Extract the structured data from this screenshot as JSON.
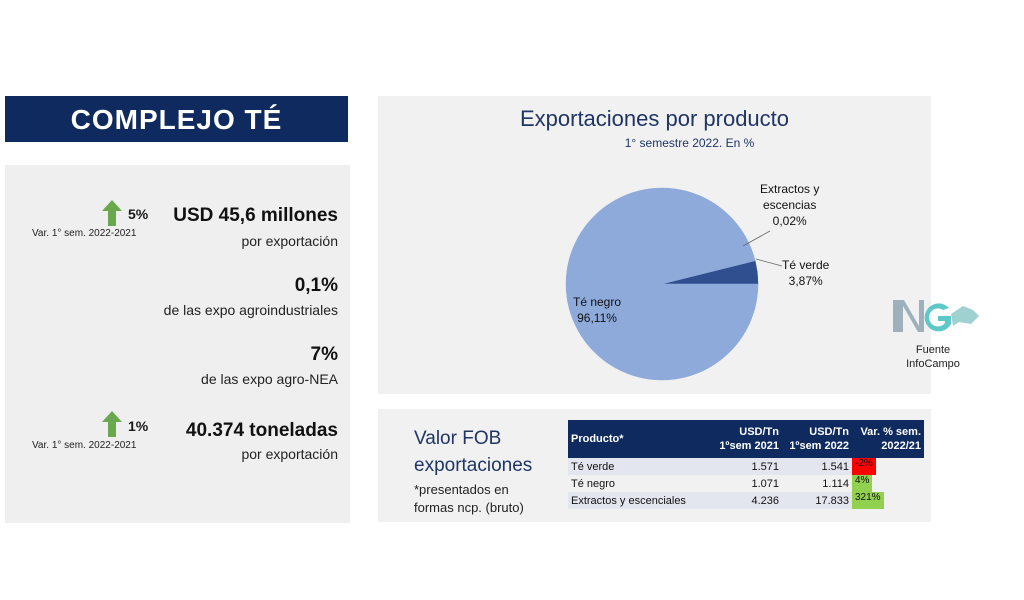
{
  "banner": {
    "title": "COMPLEJO TÉ"
  },
  "stats": {
    "exports": {
      "pct": "5%",
      "var_label": "Var. 1° sem. 2022-2021",
      "value": "USD 45,6 millones",
      "sub": "por exportación"
    },
    "agroindustrial": {
      "value": "0,1%",
      "sub": "de las expo agroindustriales"
    },
    "nea": {
      "value": "7%",
      "sub": "de las expo agro-NEA"
    },
    "tons": {
      "pct": "1%",
      "var_label": "Var. 1° sem. 2022-2021",
      "value": "40.374 toneladas",
      "sub": "por exportación"
    }
  },
  "colors": {
    "navy": "#0f2a5f",
    "pie_light": "#8eaadb",
    "pie_dark": "#2f4f8f",
    "arrow_green": "#6aa84f",
    "neg_red": "#ff0000",
    "pos_green": "#92d050"
  },
  "chart_data": {
    "type": "pie",
    "title": "Exportaciones por producto",
    "subtitle": "1° semestre 2022. En %",
    "slices": [
      {
        "label": "Té negro",
        "value": 96.11,
        "display": "96,11%"
      },
      {
        "label": "Té verde",
        "value": 3.87,
        "display": "3,87%"
      },
      {
        "label": "Extractos y escencias",
        "value": 0.02,
        "display": "0,02%"
      }
    ]
  },
  "pie_labels": {
    "negro": {
      "name": "Té negro",
      "value": "96,11%"
    },
    "verde": {
      "name": "Té verde",
      "value": "3,87%"
    },
    "extractos": {
      "name1": "Extractos y",
      "name2": "escencias",
      "value": "0,02%"
    }
  },
  "logo": {
    "mark": "NG",
    "caption1": "Fuente",
    "caption2": "InfoCampo"
  },
  "fob": {
    "title1": "Valor FOB",
    "title2": "exportaciones",
    "note1": "*presentados en",
    "note2": "formas ncp. (bruto)",
    "headers": {
      "producto": "Producto*",
      "c1a": "USD/Tn",
      "c1b": "1ºsem 2021",
      "c2a": "USD/Tn",
      "c2b": "1ºsem 2022",
      "c3a": "Var. % sem.",
      "c3b": "2022/21"
    },
    "rows": [
      {
        "producto": "Té verde",
        "usd2021": "1.571",
        "usd2022": "1.541",
        "var": "-2%"
      },
      {
        "producto": "Té negro",
        "usd2021": "1.071",
        "usd2022": "1.114",
        "var": "4%"
      },
      {
        "producto": "Extractos y escenciales",
        "usd2021": "4.236",
        "usd2022": "17.833",
        "var": "321%"
      }
    ]
  }
}
